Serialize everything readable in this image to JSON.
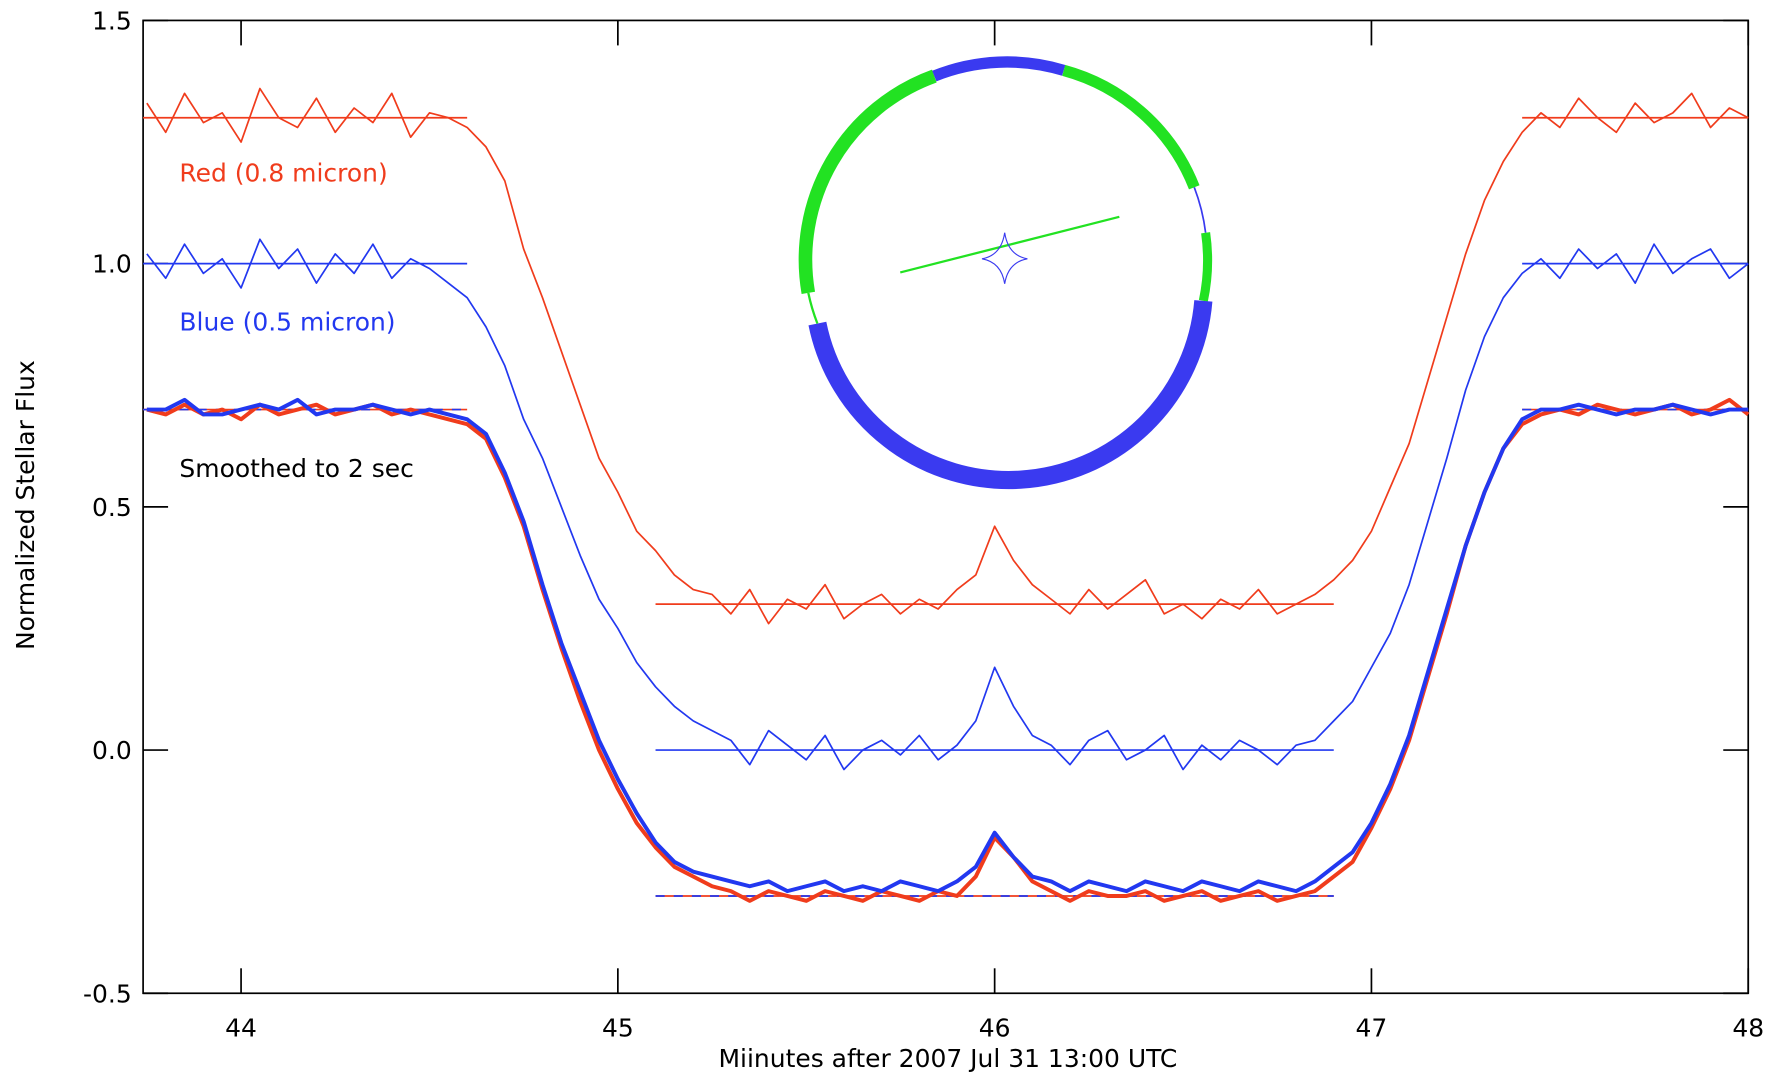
{
  "chart_data": {
    "type": "line",
    "xlabel": "Miinutes after 2007 Jul 31 13:00 UTC",
    "ylabel": "Normalized Stellar Flux",
    "xlim": [
      43.74,
      48.0
    ],
    "ylim": [
      -0.5,
      1.5
    ],
    "xticks": [
      44,
      45,
      46,
      47,
      48
    ],
    "yticks": [
      -0.5,
      {
        "value": 0,
        "label": "0.0"
      },
      0.5,
      {
        "value": 1,
        "label": "1.0"
      },
      1.5
    ],
    "x": [
      43.75,
      43.8,
      43.85,
      43.9,
      43.95,
      44.0,
      44.05,
      44.1,
      44.15,
      44.2,
      44.25,
      44.3,
      44.35,
      44.4,
      44.45,
      44.5,
      44.55,
      44.6,
      44.65,
      44.7,
      44.75,
      44.8,
      44.85,
      44.9,
      44.95,
      45.0,
      45.05,
      45.1,
      45.15,
      45.2,
      45.25,
      45.3,
      45.35,
      45.4,
      45.45,
      45.5,
      45.55,
      45.6,
      45.65,
      45.7,
      45.75,
      45.8,
      45.85,
      45.9,
      45.95,
      46.0,
      46.05,
      46.1,
      46.15,
      46.2,
      46.25,
      46.3,
      46.35,
      46.4,
      46.45,
      46.5,
      46.55,
      46.6,
      46.65,
      46.7,
      46.75,
      46.8,
      46.85,
      46.9,
      46.95,
      47.0,
      47.05,
      47.1,
      47.15,
      47.2,
      47.25,
      47.3,
      47.35,
      47.4,
      47.45,
      47.5,
      47.55,
      47.6,
      47.65,
      47.7,
      47.75,
      47.8,
      47.85,
      47.9,
      47.95,
      48.0
    ],
    "series": [
      {
        "color": "#f03c1c",
        "width": 1.5,
        "values": [
          1.33,
          1.27,
          1.35,
          1.29,
          1.31,
          1.25,
          1.36,
          1.3,
          1.28,
          1.34,
          1.27,
          1.32,
          1.29,
          1.35,
          1.26,
          1.31,
          1.3,
          1.28,
          1.24,
          1.17,
          1.03,
          0.93,
          0.82,
          0.71,
          0.6,
          0.53,
          0.45,
          0.41,
          0.36,
          0.33,
          0.32,
          0.28,
          0.33,
          0.26,
          0.31,
          0.29,
          0.34,
          0.27,
          0.3,
          0.32,
          0.28,
          0.31,
          0.29,
          0.33,
          0.36,
          0.46,
          0.39,
          0.34,
          0.31,
          0.28,
          0.33,
          0.29,
          0.32,
          0.35,
          0.28,
          0.3,
          0.27,
          0.31,
          0.29,
          0.33,
          0.28,
          0.3,
          0.32,
          0.35,
          0.39,
          0.45,
          0.54,
          0.63,
          0.76,
          0.89,
          1.02,
          1.13,
          1.21,
          1.27,
          1.31,
          1.28,
          1.34,
          1.3,
          1.27,
          1.33,
          1.29,
          1.31,
          1.35,
          1.28,
          1.32,
          1.3
        ]
      },
      {
        "color": "#2238f0",
        "width": 1.5,
        "values": [
          1.02,
          0.97,
          1.04,
          0.98,
          1.01,
          0.95,
          1.05,
          0.99,
          1.03,
          0.96,
          1.02,
          0.98,
          1.04,
          0.97,
          1.01,
          0.99,
          0.96,
          0.93,
          0.87,
          0.79,
          0.68,
          0.6,
          0.5,
          0.4,
          0.31,
          0.25,
          0.18,
          0.13,
          0.09,
          0.06,
          0.04,
          0.02,
          -0.03,
          0.04,
          0.01,
          -0.02,
          0.03,
          -0.04,
          0.0,
          0.02,
          -0.01,
          0.03,
          -0.02,
          0.01,
          0.06,
          0.17,
          0.09,
          0.03,
          0.01,
          -0.03,
          0.02,
          0.04,
          -0.02,
          0.0,
          0.03,
          -0.04,
          0.01,
          -0.02,
          0.02,
          0.0,
          -0.03,
          0.01,
          0.02,
          0.06,
          0.1,
          0.17,
          0.24,
          0.34,
          0.47,
          0.6,
          0.74,
          0.85,
          0.93,
          0.98,
          1.01,
          0.97,
          1.03,
          0.99,
          1.02,
          0.96,
          1.04,
          0.98,
          1.01,
          1.03,
          0.97,
          1.0
        ]
      },
      {
        "color": "#f03c1c",
        "width": 3.5,
        "values": [
          0.7,
          0.69,
          0.71,
          0.69,
          0.7,
          0.68,
          0.71,
          0.69,
          0.7,
          0.71,
          0.69,
          0.7,
          0.71,
          0.69,
          0.7,
          0.69,
          0.68,
          0.67,
          0.64,
          0.56,
          0.46,
          0.33,
          0.21,
          0.1,
          0.0,
          -0.08,
          -0.15,
          -0.2,
          -0.24,
          -0.26,
          -0.28,
          -0.29,
          -0.31,
          -0.29,
          -0.3,
          -0.31,
          -0.29,
          -0.3,
          -0.31,
          -0.29,
          -0.3,
          -0.31,
          -0.29,
          -0.3,
          -0.26,
          -0.18,
          -0.22,
          -0.27,
          -0.29,
          -0.31,
          -0.29,
          -0.3,
          -0.3,
          -0.29,
          -0.31,
          -0.3,
          -0.29,
          -0.31,
          -0.3,
          -0.29,
          -0.31,
          -0.3,
          -0.29,
          -0.26,
          -0.23,
          -0.16,
          -0.08,
          0.02,
          0.15,
          0.28,
          0.42,
          0.53,
          0.62,
          0.67,
          0.69,
          0.7,
          0.69,
          0.71,
          0.7,
          0.69,
          0.7,
          0.71,
          0.69,
          0.7,
          0.72,
          0.69
        ]
      },
      {
        "color": "#2238f0",
        "width": 3.5,
        "values": [
          0.7,
          0.7,
          0.72,
          0.69,
          0.69,
          0.7,
          0.71,
          0.7,
          0.72,
          0.69,
          0.7,
          0.7,
          0.71,
          0.7,
          0.69,
          0.7,
          0.69,
          0.68,
          0.65,
          0.57,
          0.47,
          0.34,
          0.22,
          0.12,
          0.02,
          -0.06,
          -0.13,
          -0.19,
          -0.23,
          -0.25,
          -0.26,
          -0.27,
          -0.28,
          -0.27,
          -0.29,
          -0.28,
          -0.27,
          -0.29,
          -0.28,
          -0.29,
          -0.27,
          -0.28,
          -0.29,
          -0.27,
          -0.24,
          -0.17,
          -0.22,
          -0.26,
          -0.27,
          -0.29,
          -0.27,
          -0.28,
          -0.29,
          -0.27,
          -0.28,
          -0.29,
          -0.27,
          -0.28,
          -0.29,
          -0.27,
          -0.28,
          -0.29,
          -0.27,
          -0.24,
          -0.21,
          -0.15,
          -0.07,
          0.03,
          0.16,
          0.29,
          0.42,
          0.53,
          0.62,
          0.68,
          0.7,
          0.7,
          0.71,
          0.7,
          0.69,
          0.7,
          0.7,
          0.71,
          0.7,
          0.69,
          0.7,
          0.7
        ]
      }
    ],
    "reference_lines": [
      {
        "color": "#f03c1c",
        "value": 1.3,
        "x": [
          43.74,
          44.6
        ]
      },
      {
        "color": "#f03c1c",
        "value": 1.3,
        "x": [
          47.4,
          48.0
        ]
      },
      {
        "color": "#f03c1c",
        "value": 0.3,
        "x": [
          45.1,
          46.9
        ]
      },
      {
        "color": "#2238f0",
        "value": 1.0,
        "x": [
          43.74,
          44.6
        ]
      },
      {
        "color": "#2238f0",
        "value": 1.0,
        "x": [
          47.4,
          48.0
        ]
      },
      {
        "color": "#2238f0",
        "value": 0.0,
        "x": [
          45.1,
          46.9
        ]
      },
      {
        "color": "#f03c1c",
        "value": 0.7,
        "x": [
          43.74,
          44.6
        ]
      },
      {
        "color": "#2238f0",
        "value": 0.7,
        "x": [
          43.74,
          44.6
        ],
        "dashed": true
      },
      {
        "color": "#f03c1c",
        "value": 0.7,
        "x": [
          47.4,
          48.0
        ]
      },
      {
        "color": "#2238f0",
        "value": 0.7,
        "x": [
          47.4,
          48.0
        ],
        "dashed": true
      },
      {
        "color": "#f03c1c",
        "value": -0.3,
        "x": [
          45.1,
          46.9
        ]
      },
      {
        "color": "#2238f0",
        "value": -0.3,
        "x": [
          45.1,
          46.9
        ],
        "dashed": true
      }
    ],
    "annotations": [
      {
        "text": "Red (0.8 micron)",
        "color": "#f03c1c"
      },
      {
        "text": "Blue (0.5 micron)",
        "color": "#2238f0"
      },
      {
        "text": "Smoothed to 2 sec",
        "color": "#000000"
      }
    ]
  }
}
